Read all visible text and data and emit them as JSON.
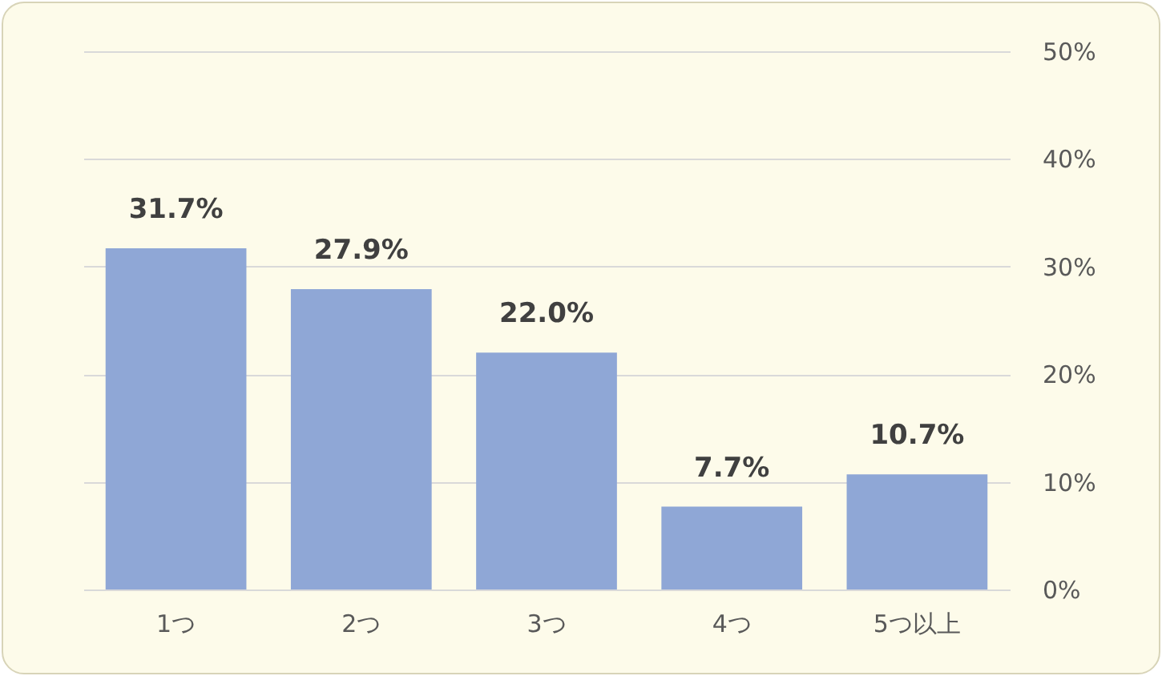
{
  "chart_data": {
    "type": "bar",
    "categories": [
      "1つ",
      "2つ",
      "3つ",
      "4つ",
      "5つ以上"
    ],
    "values": [
      31.7,
      27.9,
      22.0,
      7.7,
      10.7
    ],
    "color": "#8fa7d6",
    "value_labels": [
      "31.7%",
      "27.9%",
      "22.0%",
      "7.7%",
      "10.7%"
    ],
    "ylim": [
      0,
      50
    ],
    "yticks": [
      {
        "value": 0,
        "label": "0%"
      },
      {
        "value": 10,
        "label": "10%"
      },
      {
        "value": 20,
        "label": "20%"
      },
      {
        "value": 30,
        "label": "30%"
      },
      {
        "value": 40,
        "label": "40%"
      },
      {
        "value": 50,
        "label": "50%"
      }
    ],
    "grid": "y"
  }
}
